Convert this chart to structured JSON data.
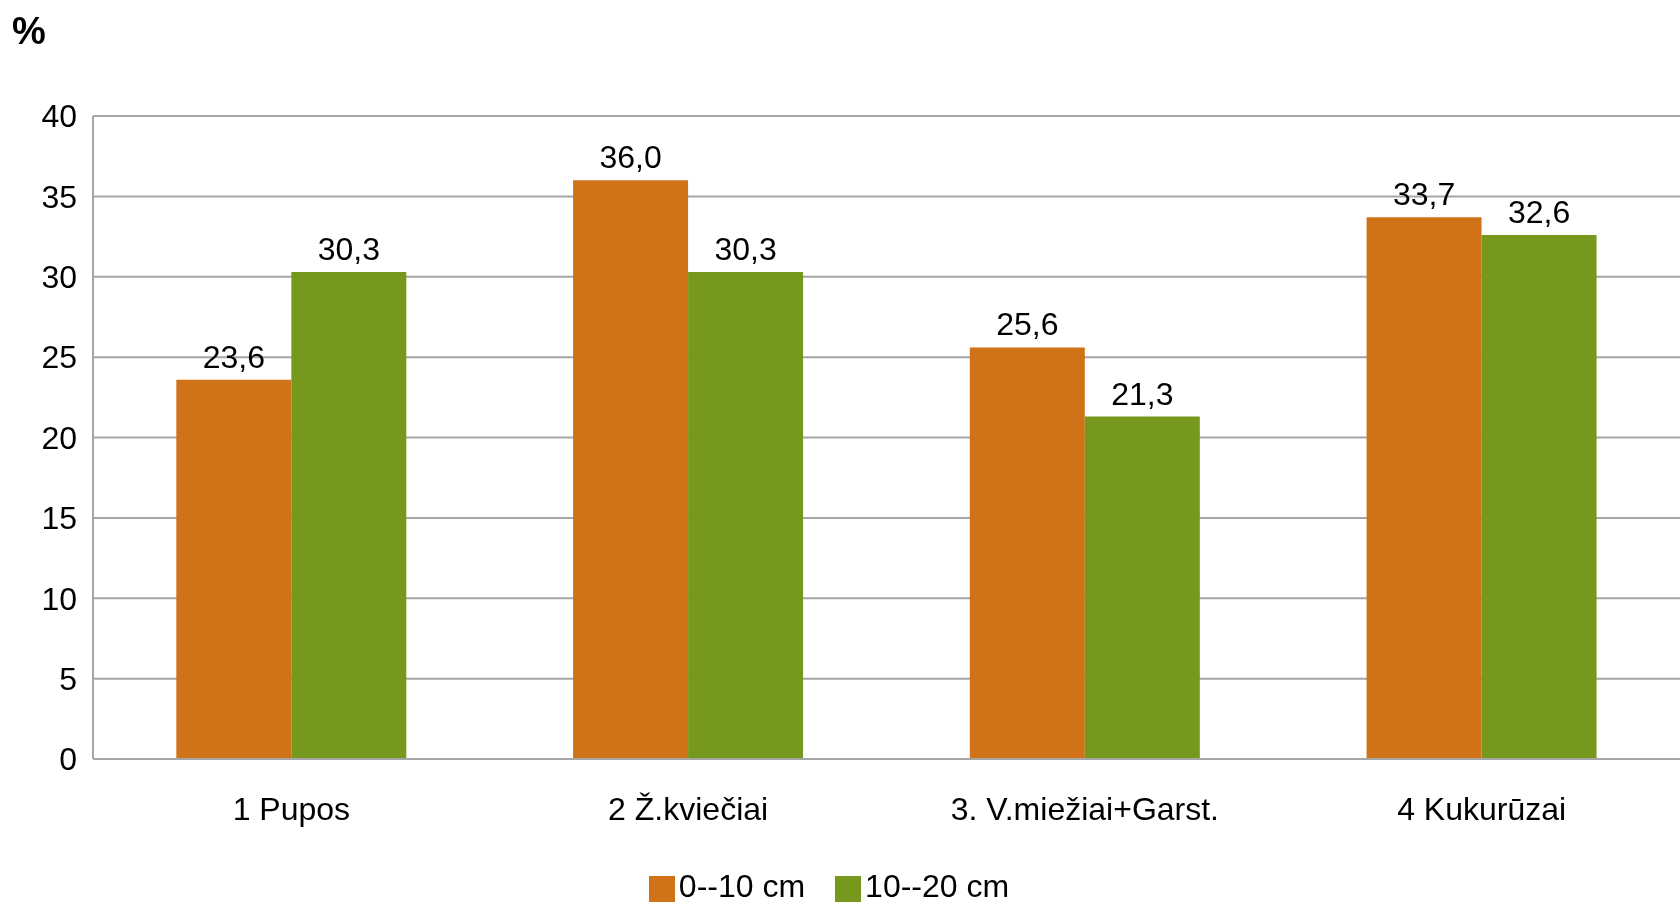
{
  "chart_data": {
    "type": "bar",
    "ylabel": "%",
    "categories": [
      "1 Pupos",
      "2 Ž.kviečiai",
      "3. V.miežiai+Garst.",
      "4 Kukurūzai"
    ],
    "series": [
      {
        "name": "0--10 cm",
        "color": "#d07318",
        "values": [
          23.6,
          36.0,
          25.6,
          33.7
        ],
        "value_labels": [
          "23,6",
          "36,0",
          "25,6",
          "33,7"
        ]
      },
      {
        "name": "10--20 cm",
        "color": "#76981d",
        "values": [
          30.3,
          30.3,
          21.3,
          32.6
        ],
        "value_labels": [
          "30,3",
          "30,3",
          "21,3",
          "32,6"
        ]
      }
    ],
    "ylim": [
      0,
      40
    ],
    "yticks": [
      0,
      5,
      10,
      15,
      20,
      25,
      30,
      35,
      40
    ],
    "grid": "y",
    "legend": "bottom"
  }
}
